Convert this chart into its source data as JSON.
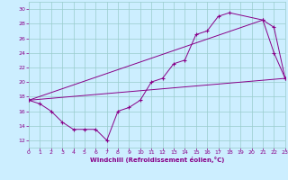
{
  "xlabel": "Windchill (Refroidissement éolien,°C)",
  "bg_color": "#cceeff",
  "grid_color": "#99cccc",
  "line_color": "#880088",
  "xmin": 0,
  "xmax": 23,
  "ymin": 11,
  "ymax": 31,
  "yticks": [
    12,
    14,
    16,
    18,
    20,
    22,
    24,
    26,
    28,
    30
  ],
  "xticks": [
    0,
    1,
    2,
    3,
    4,
    5,
    6,
    7,
    8,
    9,
    10,
    11,
    12,
    13,
    14,
    15,
    16,
    17,
    18,
    19,
    20,
    21,
    22,
    23
  ],
  "line1_x": [
    0,
    1,
    2,
    3,
    4,
    5,
    6,
    7,
    8,
    9,
    10,
    11,
    12,
    13,
    14,
    15,
    16,
    17,
    18,
    21,
    22,
    23
  ],
  "line1_y": [
    17.5,
    17.0,
    16.0,
    14.5,
    13.5,
    13.5,
    13.5,
    12.0,
    16.0,
    16.5,
    17.5,
    20.0,
    20.5,
    22.5,
    23.0,
    26.5,
    27.0,
    29.0,
    29.5,
    28.5,
    24.0,
    20.5
  ],
  "line2_x": [
    0,
    21,
    22,
    23
  ],
  "line2_y": [
    17.5,
    28.5,
    27.5,
    20.5
  ],
  "line3_x": [
    0,
    23
  ],
  "line3_y": [
    17.5,
    20.5
  ]
}
